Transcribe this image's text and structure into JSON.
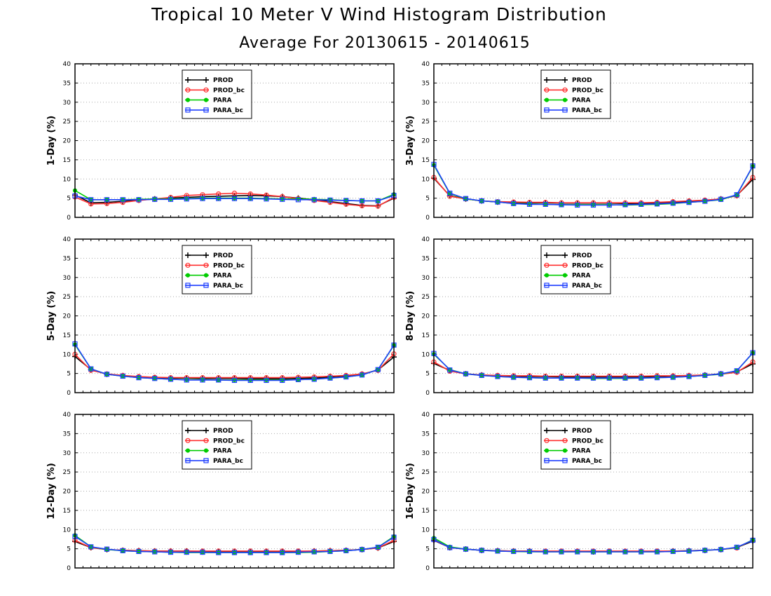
{
  "title": "Tropical 10 Meter V Wind Histogram Distribution",
  "subtitle": "Average For 20130615 - 20140615",
  "legend_labels": [
    "PROD",
    "PROD_bc",
    "PARA",
    "PARA_bc"
  ],
  "colors": {
    "PROD": "#000000",
    "PROD_bc": "#ff3030",
    "PARA": "#00cc00",
    "PARA_bc": "#1f3fff"
  },
  "chart_data": [
    {
      "type": "line",
      "ylabel": "1-Day (%)",
      "ylim": [
        0,
        40
      ],
      "yticks": [
        0,
        5,
        10,
        15,
        20,
        25,
        30,
        35,
        40
      ],
      "grid": true,
      "legend_position": "top-center",
      "x": [
        1,
        2,
        3,
        4,
        5,
        6,
        7,
        8,
        9,
        10,
        11,
        12,
        13,
        14,
        15,
        16,
        17,
        18,
        19,
        20,
        21
      ],
      "series": [
        {
          "name": "PROD",
          "marker": "plus",
          "values": [
            5.8,
            3.8,
            3.9,
            4.2,
            4.5,
            4.8,
            5.0,
            5.2,
            5.4,
            5.5,
            5.6,
            5.7,
            5.6,
            5.4,
            5.0,
            4.6,
            4.1,
            3.6,
            3.1,
            3.0,
            5.0
          ]
        },
        {
          "name": "PROD_bc",
          "marker": "circle",
          "values": [
            5.3,
            3.5,
            3.6,
            3.9,
            4.4,
            4.8,
            5.2,
            5.7,
            5.9,
            6.1,
            6.3,
            6.1,
            5.8,
            5.4,
            4.9,
            4.4,
            3.9,
            3.4,
            3.0,
            2.9,
            5.2
          ]
        },
        {
          "name": "PARA",
          "marker": "dot",
          "values": [
            7.0,
            4.6,
            4.6,
            4.6,
            4.7,
            4.8,
            4.8,
            4.9,
            5.0,
            5.0,
            5.0,
            5.0,
            4.9,
            4.8,
            4.8,
            4.7,
            4.6,
            4.4,
            4.3,
            4.3,
            6.0
          ]
        },
        {
          "name": "PARA_bc",
          "marker": "square",
          "values": [
            5.6,
            4.6,
            4.6,
            4.6,
            4.6,
            4.7,
            4.7,
            4.8,
            4.9,
            4.9,
            4.9,
            4.9,
            4.8,
            4.7,
            4.6,
            4.6,
            4.5,
            4.4,
            4.3,
            4.3,
            5.7
          ]
        }
      ]
    },
    {
      "type": "line",
      "ylabel": "3-Day (%)",
      "ylim": [
        0,
        40
      ],
      "yticks": [
        0,
        5,
        10,
        15,
        20,
        25,
        30,
        35,
        40
      ],
      "grid": true,
      "legend_position": "top-center",
      "x": [
        1,
        2,
        3,
        4,
        5,
        6,
        7,
        8,
        9,
        10,
        11,
        12,
        13,
        14,
        15,
        16,
        17,
        18,
        19,
        20,
        21
      ],
      "series": [
        {
          "name": "PROD",
          "marker": "plus",
          "values": [
            10.2,
            5.6,
            4.8,
            4.3,
            4.0,
            3.8,
            3.8,
            3.8,
            3.7,
            3.7,
            3.7,
            3.7,
            3.6,
            3.6,
            3.7,
            3.9,
            4.1,
            4.4,
            4.8,
            5.7,
            9.9
          ]
        },
        {
          "name": "PROD_bc",
          "marker": "circle",
          "values": [
            10.4,
            5.5,
            4.8,
            4.3,
            4.1,
            4.0,
            3.9,
            3.9,
            3.8,
            3.8,
            3.8,
            3.8,
            3.8,
            3.8,
            3.9,
            4.1,
            4.3,
            4.5,
            4.8,
            5.6,
            10.4
          ]
        },
        {
          "name": "PARA",
          "marker": "dot",
          "values": [
            13.6,
            6.2,
            4.8,
            4.3,
            4.0,
            3.6,
            3.5,
            3.4,
            3.3,
            3.3,
            3.3,
            3.3,
            3.2,
            3.3,
            3.4,
            3.6,
            3.9,
            4.2,
            4.6,
            5.8,
            13.3
          ]
        },
        {
          "name": "PARA_bc",
          "marker": "square",
          "values": [
            13.8,
            6.3,
            4.9,
            4.3,
            4.0,
            3.6,
            3.4,
            3.4,
            3.3,
            3.2,
            3.2,
            3.2,
            3.3,
            3.4,
            3.5,
            3.7,
            3.9,
            4.2,
            4.7,
            5.9,
            13.4
          ]
        }
      ]
    },
    {
      "type": "line",
      "ylabel": "5-Day (%)",
      "ylim": [
        0,
        40
      ],
      "yticks": [
        0,
        5,
        10,
        15,
        20,
        25,
        30,
        35,
        40
      ],
      "grid": true,
      "legend_position": "top-center",
      "x": [
        1,
        2,
        3,
        4,
        5,
        6,
        7,
        8,
        9,
        10,
        11,
        12,
        13,
        14,
        15,
        16,
        17,
        18,
        19,
        20,
        21
      ],
      "series": [
        {
          "name": "PROD",
          "marker": "plus",
          "values": [
            9.4,
            6.0,
            4.8,
            4.4,
            4.1,
            3.9,
            3.8,
            3.8,
            3.7,
            3.7,
            3.7,
            3.6,
            3.6,
            3.6,
            3.7,
            3.8,
            4.0,
            4.3,
            4.8,
            5.9,
            9.3
          ]
        },
        {
          "name": "PROD_bc",
          "marker": "circle",
          "values": [
            10.0,
            5.8,
            4.9,
            4.5,
            4.2,
            4.0,
            3.9,
            3.9,
            3.9,
            3.9,
            3.9,
            3.9,
            3.9,
            3.9,
            4.0,
            4.1,
            4.3,
            4.5,
            4.9,
            5.8,
            10.1
          ]
        },
        {
          "name": "PARA",
          "marker": "dot",
          "values": [
            12.5,
            6.2,
            4.8,
            4.3,
            3.9,
            3.7,
            3.5,
            3.4,
            3.4,
            3.3,
            3.3,
            3.3,
            3.3,
            3.3,
            3.4,
            3.5,
            3.8,
            4.1,
            4.6,
            6.0,
            12.3
          ]
        },
        {
          "name": "PARA_bc",
          "marker": "square",
          "values": [
            12.7,
            6.2,
            4.8,
            4.3,
            3.9,
            3.7,
            3.5,
            3.3,
            3.3,
            3.3,
            3.2,
            3.2,
            3.2,
            3.2,
            3.4,
            3.5,
            3.8,
            4.1,
            4.6,
            6.0,
            12.4
          ]
        }
      ]
    },
    {
      "type": "line",
      "ylabel": "8-Day (%)",
      "ylim": [
        0,
        40
      ],
      "yticks": [
        0,
        5,
        10,
        15,
        20,
        25,
        30,
        35,
        40
      ],
      "grid": true,
      "legend_position": "top-center",
      "x": [
        1,
        2,
        3,
        4,
        5,
        6,
        7,
        8,
        9,
        10,
        11,
        12,
        13,
        14,
        15,
        16,
        17,
        18,
        19,
        20,
        21
      ],
      "series": [
        {
          "name": "PROD",
          "marker": "plus",
          "values": [
            7.6,
            5.8,
            4.9,
            4.6,
            4.4,
            4.3,
            4.2,
            4.2,
            4.1,
            4.1,
            4.1,
            4.1,
            4.1,
            4.1,
            4.2,
            4.3,
            4.4,
            4.6,
            4.9,
            5.4,
            7.5
          ]
        },
        {
          "name": "PROD_bc",
          "marker": "circle",
          "values": [
            8.0,
            5.6,
            4.9,
            4.6,
            4.5,
            4.4,
            4.4,
            4.3,
            4.3,
            4.3,
            4.3,
            4.3,
            4.3,
            4.3,
            4.4,
            4.4,
            4.5,
            4.6,
            4.8,
            5.3,
            8.0
          ]
        },
        {
          "name": "PARA",
          "marker": "dot",
          "values": [
            10.0,
            6.0,
            4.9,
            4.5,
            4.2,
            4.0,
            3.9,
            3.8,
            3.8,
            3.8,
            3.7,
            3.7,
            3.7,
            3.8,
            3.9,
            4.0,
            4.2,
            4.5,
            4.8,
            5.7,
            10.3
          ]
        },
        {
          "name": "PARA_bc",
          "marker": "square",
          "values": [
            10.2,
            5.9,
            4.9,
            4.5,
            4.2,
            4.0,
            3.9,
            3.8,
            3.8,
            3.8,
            3.8,
            3.8,
            3.8,
            3.8,
            3.9,
            4.0,
            4.2,
            4.5,
            4.9,
            5.7,
            10.4
          ]
        }
      ]
    },
    {
      "type": "line",
      "ylabel": "12-Day (%)",
      "ylim": [
        0,
        40
      ],
      "yticks": [
        0,
        5,
        10,
        15,
        20,
        25,
        30,
        35,
        40
      ],
      "grid": true,
      "legend_position": "top-center",
      "x": [
        1,
        2,
        3,
        4,
        5,
        6,
        7,
        8,
        9,
        10,
        11,
        12,
        13,
        14,
        15,
        16,
        17,
        18,
        19,
        20,
        21
      ],
      "series": [
        {
          "name": "PROD",
          "marker": "plus",
          "values": [
            6.9,
            5.3,
            4.8,
            4.6,
            4.5,
            4.4,
            4.4,
            4.4,
            4.3,
            4.3,
            4.3,
            4.3,
            4.3,
            4.3,
            4.3,
            4.4,
            4.5,
            4.6,
            4.8,
            5.2,
            6.9
          ]
        },
        {
          "name": "PROD_bc",
          "marker": "circle",
          "values": [
            7.2,
            5.3,
            4.8,
            4.6,
            4.5,
            4.4,
            4.4,
            4.4,
            4.4,
            4.4,
            4.4,
            4.4,
            4.4,
            4.4,
            4.4,
            4.4,
            4.5,
            4.6,
            4.8,
            5.2,
            7.2
          ]
        },
        {
          "name": "PARA",
          "marker": "dot",
          "values": [
            8.5,
            5.5,
            4.8,
            4.5,
            4.3,
            4.2,
            4.1,
            4.0,
            4.0,
            4.0,
            4.0,
            4.0,
            4.0,
            4.0,
            4.0,
            4.1,
            4.3,
            4.5,
            4.8,
            5.4,
            8.2
          ]
        },
        {
          "name": "PARA_bc",
          "marker": "square",
          "values": [
            8.2,
            5.5,
            4.9,
            4.5,
            4.3,
            4.2,
            4.1,
            4.1,
            4.1,
            4.0,
            4.0,
            4.0,
            4.0,
            4.0,
            4.1,
            4.2,
            4.3,
            4.5,
            4.8,
            5.4,
            8.0
          ]
        }
      ]
    },
    {
      "type": "line",
      "ylabel": "16-Day (%)",
      "ylim": [
        0,
        40
      ],
      "yticks": [
        0,
        5,
        10,
        15,
        20,
        25,
        30,
        35,
        40
      ],
      "grid": true,
      "legend_position": "top-center",
      "x": [
        1,
        2,
        3,
        4,
        5,
        6,
        7,
        8,
        9,
        10,
        11,
        12,
        13,
        14,
        15,
        16,
        17,
        18,
        19,
        20,
        21
      ],
      "series": [
        {
          "name": "PROD",
          "marker": "plus",
          "values": [
            7.2,
            5.3,
            4.9,
            4.6,
            4.5,
            4.4,
            4.4,
            4.3,
            4.3,
            4.3,
            4.2,
            4.3,
            4.3,
            4.3,
            4.3,
            4.4,
            4.5,
            4.6,
            4.8,
            5.3,
            7.0
          ]
        },
        {
          "name": "PROD_bc",
          "marker": "circle",
          "values": [
            7.3,
            5.3,
            4.9,
            4.6,
            4.5,
            4.4,
            4.4,
            4.4,
            4.4,
            4.4,
            4.4,
            4.4,
            4.4,
            4.4,
            4.4,
            4.4,
            4.5,
            4.6,
            4.8,
            5.2,
            7.3
          ]
        },
        {
          "name": "PARA",
          "marker": "dot",
          "values": [
            7.8,
            5.5,
            4.9,
            4.6,
            4.4,
            4.3,
            4.2,
            4.2,
            4.2,
            4.2,
            4.2,
            4.2,
            4.2,
            4.2,
            4.2,
            4.3,
            4.4,
            4.6,
            4.8,
            5.3,
            7.3
          ]
        },
        {
          "name": "PARA_bc",
          "marker": "square",
          "values": [
            7.4,
            5.3,
            4.9,
            4.6,
            4.4,
            4.3,
            4.3,
            4.2,
            4.2,
            4.2,
            4.2,
            4.2,
            4.2,
            4.2,
            4.2,
            4.3,
            4.4,
            4.6,
            4.8,
            5.4,
            7.2
          ]
        }
      ]
    }
  ]
}
